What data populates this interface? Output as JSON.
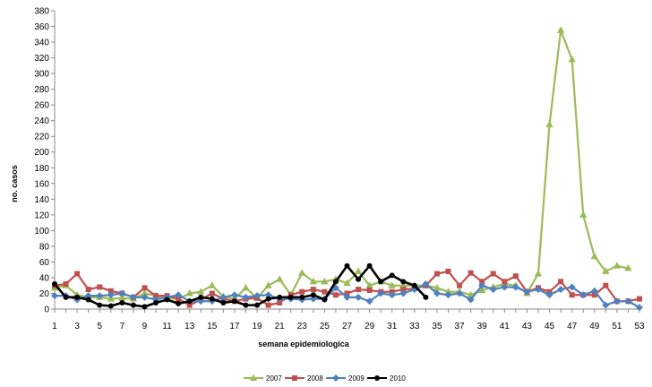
{
  "chart_data": {
    "type": "line",
    "title": "",
    "xlabel": "semana epidemiologica",
    "ylabel": "no. casos",
    "ylim": [
      0,
      380
    ],
    "ytick_step": 20,
    "xlim": [
      1,
      53
    ],
    "xtick_labels": [
      1,
      3,
      5,
      7,
      9,
      11,
      13,
      15,
      17,
      19,
      21,
      23,
      25,
      27,
      29,
      31,
      33,
      35,
      37,
      39,
      41,
      43,
      45,
      47,
      49,
      51,
      53
    ],
    "grid": false,
    "legend_position": "bottom",
    "series": [
      {
        "name": "2007",
        "color": "#9BBB59",
        "marker": "triangle",
        "x": [
          1,
          2,
          3,
          4,
          5,
          6,
          7,
          8,
          9,
          10,
          11,
          12,
          13,
          14,
          15,
          16,
          17,
          18,
          19,
          20,
          21,
          22,
          23,
          24,
          25,
          26,
          27,
          28,
          29,
          30,
          31,
          32,
          33,
          34,
          35,
          36,
          37,
          38,
          39,
          40,
          41,
          42,
          43,
          44,
          45,
          46,
          47,
          48,
          49,
          50,
          51,
          52
        ],
        "values": [
          27,
          30,
          18,
          15,
          15,
          13,
          14,
          13,
          20,
          17,
          14,
          13,
          20,
          22,
          30,
          16,
          13,
          27,
          14,
          30,
          38,
          18,
          46,
          35,
          35,
          38,
          33,
          48,
          30,
          35,
          30,
          30,
          30,
          30,
          27,
          22,
          22,
          18,
          24,
          28,
          32,
          30,
          20,
          45,
          235,
          355,
          318,
          120,
          67,
          48,
          55,
          52
        ]
      },
      {
        "name": "2008",
        "color": "#C0504D",
        "marker": "square",
        "x": [
          1,
          2,
          3,
          4,
          5,
          6,
          7,
          8,
          9,
          10,
          11,
          12,
          13,
          14,
          15,
          16,
          17,
          18,
          19,
          20,
          21,
          22,
          23,
          24,
          25,
          26,
          27,
          28,
          29,
          30,
          31,
          32,
          33,
          34,
          35,
          36,
          37,
          38,
          39,
          40,
          41,
          42,
          43,
          44,
          45,
          46,
          47,
          48,
          49,
          50,
          51,
          52,
          53
        ],
        "values": [
          30,
          32,
          45,
          25,
          28,
          23,
          20,
          15,
          27,
          17,
          17,
          13,
          5,
          12,
          20,
          13,
          10,
          13,
          14,
          5,
          8,
          18,
          22,
          25,
          22,
          18,
          20,
          25,
          24,
          22,
          22,
          25,
          26,
          30,
          45,
          48,
          30,
          46,
          35,
          45,
          35,
          42,
          22,
          27,
          22,
          35,
          18,
          18,
          18,
          30,
          10,
          10,
          13
        ]
      },
      {
        "name": "2009",
        "color": "#4F81BD",
        "marker": "diamond",
        "x": [
          1,
          2,
          3,
          4,
          5,
          6,
          7,
          8,
          9,
          10,
          11,
          12,
          13,
          14,
          15,
          16,
          17,
          18,
          19,
          20,
          21,
          22,
          23,
          24,
          25,
          26,
          27,
          28,
          29,
          30,
          31,
          32,
          33,
          34,
          35,
          36,
          37,
          38,
          39,
          40,
          41,
          42,
          43,
          44,
          45,
          46,
          47,
          48,
          49,
          50,
          51,
          52,
          53
        ],
        "values": [
          17,
          17,
          12,
          17,
          17,
          18,
          20,
          15,
          15,
          12,
          15,
          18,
          10,
          10,
          10,
          15,
          18,
          15,
          17,
          18,
          13,
          13,
          12,
          13,
          13,
          27,
          15,
          15,
          10,
          20,
          18,
          20,
          25,
          32,
          20,
          18,
          20,
          12,
          30,
          25,
          28,
          28,
          22,
          25,
          18,
          25,
          28,
          18,
          23,
          5,
          10,
          10,
          2
        ]
      },
      {
        "name": "2010",
        "color": "#000000",
        "marker": "circle",
        "x": [
          1,
          2,
          3,
          4,
          5,
          6,
          7,
          8,
          9,
          10,
          11,
          12,
          13,
          14,
          15,
          16,
          17,
          18,
          19,
          20,
          21,
          22,
          23,
          24,
          25,
          26,
          27,
          28,
          29,
          30,
          31,
          32,
          33,
          34
        ],
        "values": [
          32,
          15,
          15,
          12,
          5,
          4,
          8,
          5,
          3,
          8,
          12,
          7,
          10,
          15,
          13,
          8,
          10,
          5,
          5,
          13,
          15,
          15,
          15,
          18,
          12,
          35,
          55,
          38,
          55,
          35,
          43,
          35,
          30,
          15
        ]
      }
    ]
  }
}
